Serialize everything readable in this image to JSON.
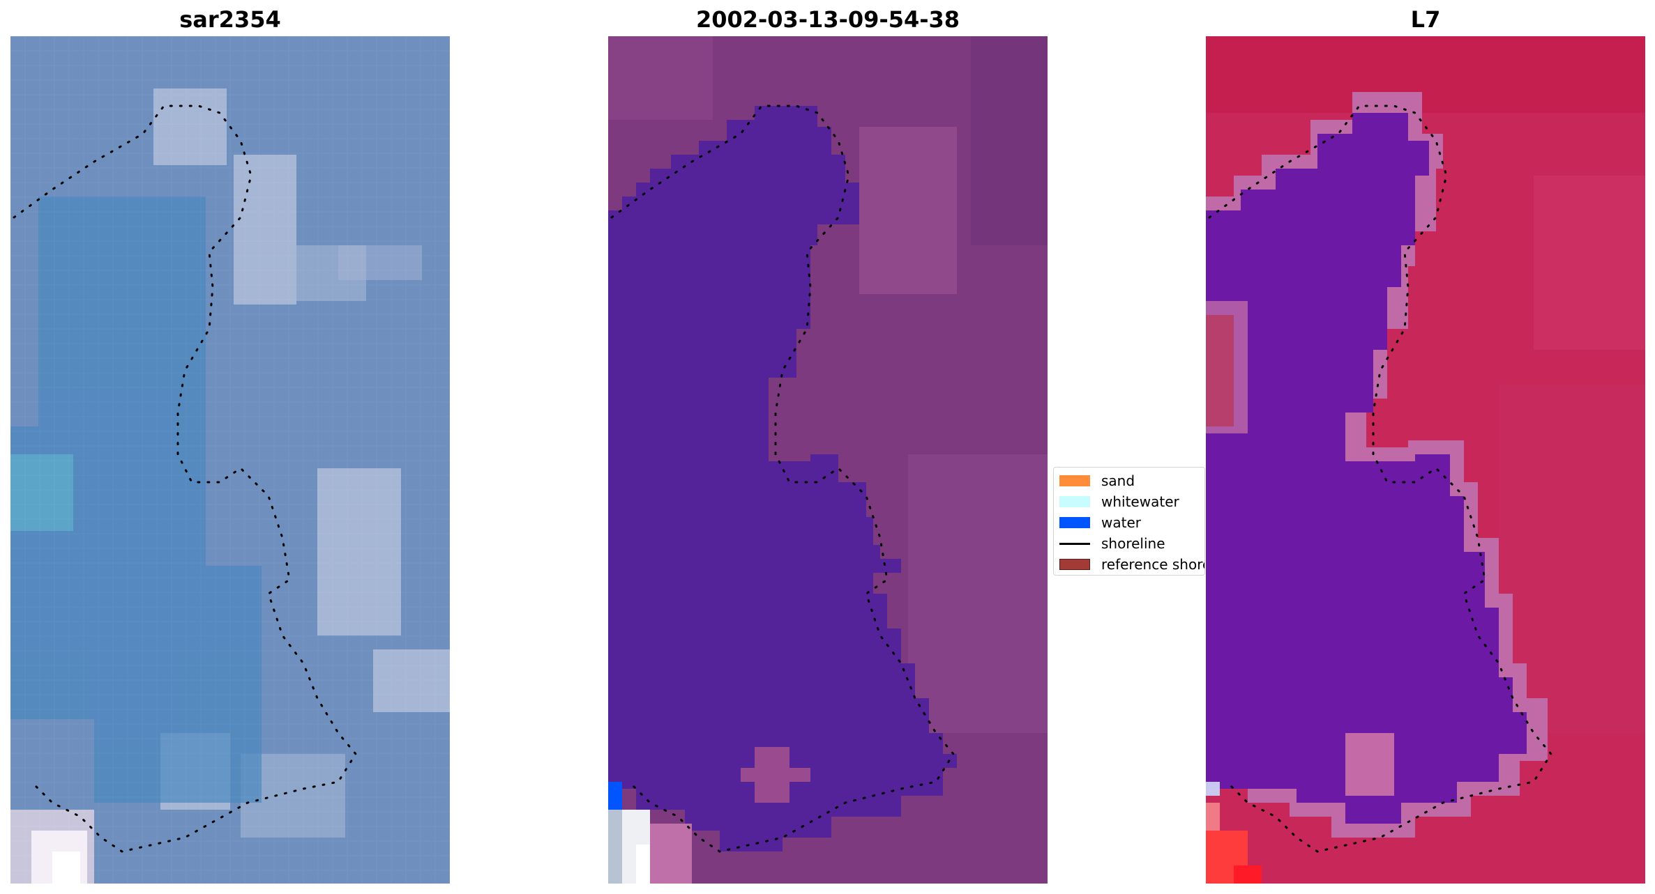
{
  "panels": [
    {
      "title": "sar2354",
      "style": "rgb"
    },
    {
      "title": "2002-03-13-09-54-38",
      "style": "classified"
    },
    {
      "title": "L7",
      "style": "index"
    }
  ],
  "legend": {
    "items": [
      {
        "label": "sand",
        "color": "#ff8c3b",
        "kind": "patch",
        "icon": "sand-swatch"
      },
      {
        "label": "whitewater",
        "color": "#c8fdff",
        "kind": "patch",
        "icon": "whitewater-swatch"
      },
      {
        "label": "water",
        "color": "#0055ff",
        "kind": "patch",
        "icon": "water-swatch"
      },
      {
        "label": "shoreline",
        "color": "#000000",
        "kind": "line",
        "icon": "shoreline-line"
      },
      {
        "label": "reference shoreline",
        "color": "#a23a36",
        "kind": "patch",
        "icon": "reference-shoreline-swatch"
      }
    ]
  },
  "colors": {
    "rgb_land": "#6f8fbf",
    "rgb_water": "#4f86b8",
    "classified_land": "#7d3a7f",
    "classified_water": "#54239a",
    "index_land": "#c8275a",
    "index_water": "#6c1aa6",
    "index_edge": "#c06aa8",
    "shoreline_dots": "#000000"
  }
}
